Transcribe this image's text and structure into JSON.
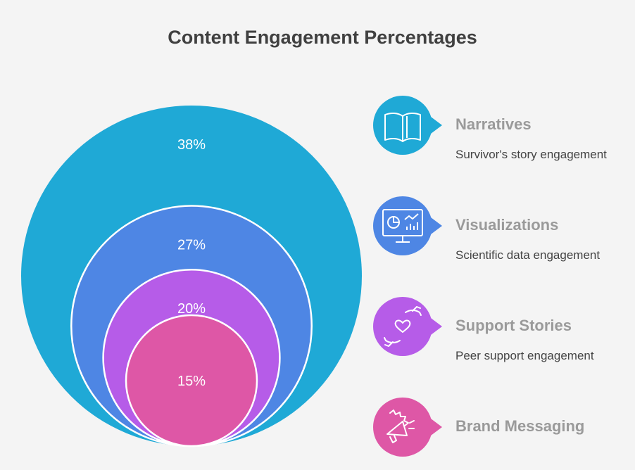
{
  "title": "Content Engagement Percentages",
  "chart_data": {
    "type": "nested-circles",
    "series": [
      {
        "name": "Narratives",
        "value": 38,
        "label": "38%",
        "description": "Survivor's story engagement",
        "color": "#1fa9d6",
        "icon": "open-book-icon"
      },
      {
        "name": "Visualizations",
        "value": 27,
        "label": "27%",
        "description": "Scientific data engagement",
        "color": "#4e86e4",
        "icon": "monitor-chart-icon"
      },
      {
        "name": "Support Stories",
        "value": 20,
        "label": "20%",
        "description": "Peer support engagement",
        "color": "#b65ce8",
        "icon": "hands-heart-icon"
      },
      {
        "name": "Brand Messaging",
        "value": 15,
        "label": "15%",
        "description": "",
        "color": "#de57a6",
        "icon": "megaphone-icon"
      }
    ]
  }
}
